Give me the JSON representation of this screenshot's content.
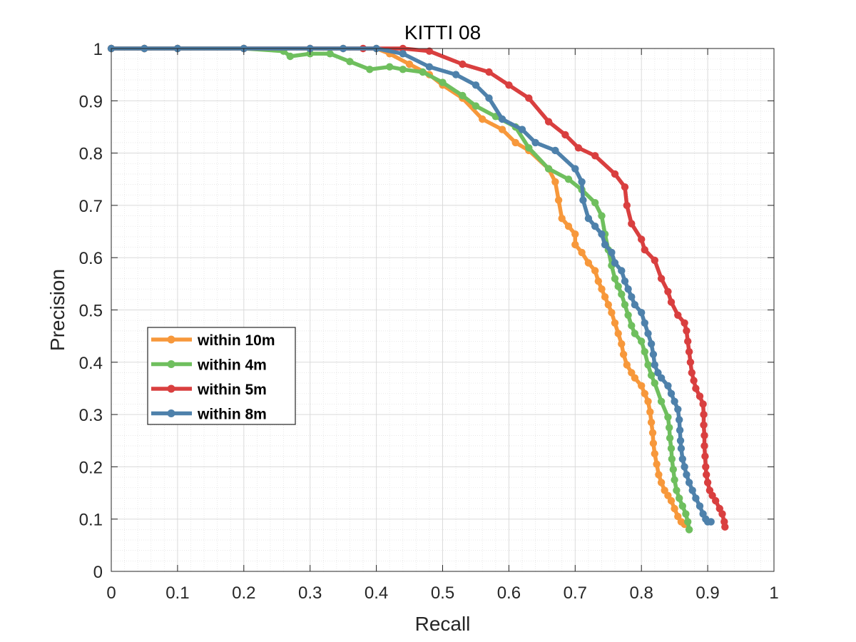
{
  "chart_data": {
    "type": "line",
    "title": "KITTI 08",
    "xlabel": "Recall",
    "ylabel": "Precision",
    "xlim": [
      0,
      1
    ],
    "ylim": [
      0,
      1
    ],
    "xticks": [
      "0",
      "0.1",
      "0.2",
      "0.3",
      "0.4",
      "0.5",
      "0.6",
      "0.7",
      "0.8",
      "0.9",
      "1"
    ],
    "yticks": [
      "0",
      "0.1",
      "0.2",
      "0.3",
      "0.4",
      "0.5",
      "0.6",
      "0.7",
      "0.8",
      "0.9",
      "1"
    ],
    "grid": true,
    "minor_grid": true,
    "legend_position": "center-left",
    "series": [
      {
        "name": "within 10m",
        "color": "#F7983B",
        "points": [
          [
            0,
            1
          ],
          [
            0.05,
            1
          ],
          [
            0.1,
            1
          ],
          [
            0.2,
            1
          ],
          [
            0.3,
            1
          ],
          [
            0.35,
            1
          ],
          [
            0.4,
            1
          ],
          [
            0.42,
            0.99
          ],
          [
            0.45,
            0.97
          ],
          [
            0.48,
            0.95
          ],
          [
            0.5,
            0.93
          ],
          [
            0.53,
            0.905
          ],
          [
            0.56,
            0.865
          ],
          [
            0.59,
            0.845
          ],
          [
            0.61,
            0.82
          ],
          [
            0.63,
            0.805
          ],
          [
            0.66,
            0.77
          ],
          [
            0.67,
            0.745
          ],
          [
            0.675,
            0.71
          ],
          [
            0.68,
            0.675
          ],
          [
            0.69,
            0.66
          ],
          [
            0.7,
            0.645
          ],
          [
            0.7,
            0.625
          ],
          [
            0.71,
            0.61
          ],
          [
            0.72,
            0.59
          ],
          [
            0.73,
            0.575
          ],
          [
            0.735,
            0.555
          ],
          [
            0.74,
            0.54
          ],
          [
            0.745,
            0.525
          ],
          [
            0.75,
            0.51
          ],
          [
            0.755,
            0.495
          ],
          [
            0.76,
            0.475
          ],
          [
            0.765,
            0.455
          ],
          [
            0.77,
            0.435
          ],
          [
            0.773,
            0.415
          ],
          [
            0.778,
            0.395
          ],
          [
            0.785,
            0.38
          ],
          [
            0.79,
            0.37
          ],
          [
            0.8,
            0.355
          ],
          [
            0.805,
            0.34
          ],
          [
            0.81,
            0.325
          ],
          [
            0.813,
            0.305
          ],
          [
            0.815,
            0.285
          ],
          [
            0.817,
            0.265
          ],
          [
            0.818,
            0.245
          ],
          [
            0.82,
            0.225
          ],
          [
            0.823,
            0.205
          ],
          [
            0.826,
            0.185
          ],
          [
            0.83,
            0.17
          ],
          [
            0.835,
            0.155
          ],
          [
            0.84,
            0.145
          ],
          [
            0.845,
            0.135
          ],
          [
            0.85,
            0.12
          ],
          [
            0.855,
            0.105
          ],
          [
            0.86,
            0.095
          ],
          [
            0.865,
            0.09
          ]
        ]
      },
      {
        "name": "within 4m",
        "color": "#6FBF5E",
        "points": [
          [
            0,
            1
          ],
          [
            0.05,
            1
          ],
          [
            0.1,
            1
          ],
          [
            0.2,
            1
          ],
          [
            0.26,
            0.995
          ],
          [
            0.27,
            0.985
          ],
          [
            0.3,
            0.99
          ],
          [
            0.33,
            0.99
          ],
          [
            0.36,
            0.975
          ],
          [
            0.39,
            0.96
          ],
          [
            0.42,
            0.965
          ],
          [
            0.44,
            0.96
          ],
          [
            0.47,
            0.955
          ],
          [
            0.5,
            0.935
          ],
          [
            0.53,
            0.91
          ],
          [
            0.55,
            0.89
          ],
          [
            0.58,
            0.87
          ],
          [
            0.61,
            0.85
          ],
          [
            0.63,
            0.81
          ],
          [
            0.66,
            0.77
          ],
          [
            0.69,
            0.75
          ],
          [
            0.71,
            0.73
          ],
          [
            0.73,
            0.705
          ],
          [
            0.74,
            0.68
          ],
          [
            0.745,
            0.645
          ],
          [
            0.75,
            0.615
          ],
          [
            0.755,
            0.585
          ],
          [
            0.76,
            0.56
          ],
          [
            0.765,
            0.545
          ],
          [
            0.77,
            0.53
          ],
          [
            0.775,
            0.51
          ],
          [
            0.78,
            0.49
          ],
          [
            0.785,
            0.47
          ],
          [
            0.79,
            0.455
          ],
          [
            0.8,
            0.44
          ],
          [
            0.805,
            0.42
          ],
          [
            0.81,
            0.395
          ],
          [
            0.815,
            0.375
          ],
          [
            0.82,
            0.36
          ],
          [
            0.83,
            0.325
          ],
          [
            0.84,
            0.295
          ],
          [
            0.842,
            0.275
          ],
          [
            0.843,
            0.255
          ],
          [
            0.845,
            0.235
          ],
          [
            0.846,
            0.215
          ],
          [
            0.848,
            0.195
          ],
          [
            0.85,
            0.175
          ],
          [
            0.853,
            0.155
          ],
          [
            0.857,
            0.14
          ],
          [
            0.862,
            0.125
          ],
          [
            0.867,
            0.11
          ],
          [
            0.87,
            0.095
          ],
          [
            0.872,
            0.08
          ]
        ]
      },
      {
        "name": "within 5m",
        "color": "#D93F3F",
        "points": [
          [
            0,
            1
          ],
          [
            0.05,
            1
          ],
          [
            0.1,
            1
          ],
          [
            0.2,
            1
          ],
          [
            0.3,
            1
          ],
          [
            0.38,
            1
          ],
          [
            0.44,
            1
          ],
          [
            0.48,
            0.995
          ],
          [
            0.53,
            0.97
          ],
          [
            0.57,
            0.955
          ],
          [
            0.6,
            0.93
          ],
          [
            0.63,
            0.905
          ],
          [
            0.66,
            0.86
          ],
          [
            0.685,
            0.835
          ],
          [
            0.705,
            0.81
          ],
          [
            0.73,
            0.795
          ],
          [
            0.76,
            0.76
          ],
          [
            0.775,
            0.735
          ],
          [
            0.778,
            0.7
          ],
          [
            0.785,
            0.665
          ],
          [
            0.8,
            0.635
          ],
          [
            0.805,
            0.615
          ],
          [
            0.82,
            0.595
          ],
          [
            0.83,
            0.56
          ],
          [
            0.84,
            0.535
          ],
          [
            0.845,
            0.515
          ],
          [
            0.855,
            0.49
          ],
          [
            0.865,
            0.475
          ],
          [
            0.868,
            0.46
          ],
          [
            0.87,
            0.44
          ],
          [
            0.872,
            0.42
          ],
          [
            0.874,
            0.4
          ],
          [
            0.876,
            0.38
          ],
          [
            0.879,
            0.365
          ],
          [
            0.882,
            0.35
          ],
          [
            0.888,
            0.335
          ],
          [
            0.893,
            0.32
          ],
          [
            0.894,
            0.3
          ],
          [
            0.894,
            0.28
          ],
          [
            0.895,
            0.26
          ],
          [
            0.895,
            0.24
          ],
          [
            0.896,
            0.22
          ],
          [
            0.897,
            0.2
          ],
          [
            0.898,
            0.185
          ],
          [
            0.9,
            0.17
          ],
          [
            0.903,
            0.155
          ],
          [
            0.907,
            0.145
          ],
          [
            0.912,
            0.135
          ],
          [
            0.918,
            0.12
          ],
          [
            0.922,
            0.11
          ],
          [
            0.925,
            0.095
          ],
          [
            0.926,
            0.085
          ]
        ]
      },
      {
        "name": "within 8m",
        "color": "#4E81AB",
        "points": [
          [
            0,
            1
          ],
          [
            0.05,
            1
          ],
          [
            0.1,
            1
          ],
          [
            0.2,
            1
          ],
          [
            0.3,
            1
          ],
          [
            0.35,
            1
          ],
          [
            0.4,
            1
          ],
          [
            0.44,
            0.99
          ],
          [
            0.48,
            0.965
          ],
          [
            0.52,
            0.95
          ],
          [
            0.55,
            0.93
          ],
          [
            0.57,
            0.905
          ],
          [
            0.59,
            0.865
          ],
          [
            0.62,
            0.845
          ],
          [
            0.64,
            0.82
          ],
          [
            0.67,
            0.805
          ],
          [
            0.7,
            0.77
          ],
          [
            0.71,
            0.745
          ],
          [
            0.712,
            0.71
          ],
          [
            0.72,
            0.675
          ],
          [
            0.73,
            0.66
          ],
          [
            0.74,
            0.645
          ],
          [
            0.745,
            0.625
          ],
          [
            0.755,
            0.61
          ],
          [
            0.76,
            0.59
          ],
          [
            0.77,
            0.575
          ],
          [
            0.775,
            0.555
          ],
          [
            0.78,
            0.54
          ],
          [
            0.785,
            0.525
          ],
          [
            0.79,
            0.51
          ],
          [
            0.8,
            0.495
          ],
          [
            0.805,
            0.475
          ],
          [
            0.81,
            0.455
          ],
          [
            0.815,
            0.435
          ],
          [
            0.818,
            0.415
          ],
          [
            0.82,
            0.395
          ],
          [
            0.825,
            0.38
          ],
          [
            0.83,
            0.37
          ],
          [
            0.84,
            0.355
          ],
          [
            0.845,
            0.34
          ],
          [
            0.85,
            0.325
          ],
          [
            0.855,
            0.31
          ],
          [
            0.857,
            0.29
          ],
          [
            0.858,
            0.27
          ],
          [
            0.859,
            0.25
          ],
          [
            0.86,
            0.235
          ],
          [
            0.862,
            0.215
          ],
          [
            0.865,
            0.2
          ],
          [
            0.868,
            0.185
          ],
          [
            0.872,
            0.17
          ],
          [
            0.877,
            0.155
          ],
          [
            0.882,
            0.14
          ],
          [
            0.888,
            0.125
          ],
          [
            0.893,
            0.11
          ],
          [
            0.897,
            0.1
          ],
          [
            0.9,
            0.095
          ],
          [
            0.905,
            0.095
          ]
        ]
      }
    ]
  }
}
